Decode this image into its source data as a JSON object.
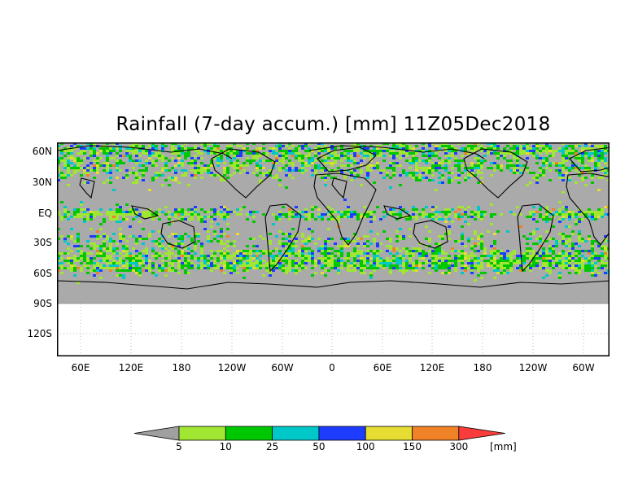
{
  "title": "Rainfall (7-day accum.) [mm] 11Z05Dec2018",
  "lat_labels": [
    "60N",
    "30N",
    "EQ",
    "30S",
    "60S",
    "90S",
    "120S"
  ],
  "lon_labels": [
    "60E",
    "120E",
    "180",
    "120W",
    "60W",
    "0",
    "60E",
    "120E",
    "180",
    "120W",
    "60W"
  ],
  "colorbar": {
    "unit": "[mm]",
    "levels": [
      "5",
      "10",
      "25",
      "50",
      "100",
      "150",
      "300"
    ],
    "colors": [
      "#a0a0a0",
      "#a0e632",
      "#00c800",
      "#00c8c8",
      "#1e3cff",
      "#e6dc32",
      "#f08228",
      "#fa3c3c"
    ]
  },
  "palette": {
    "land_mask": "#aaaaaa",
    "coastline": "#000000",
    "grid": "#b8b8b8"
  }
}
